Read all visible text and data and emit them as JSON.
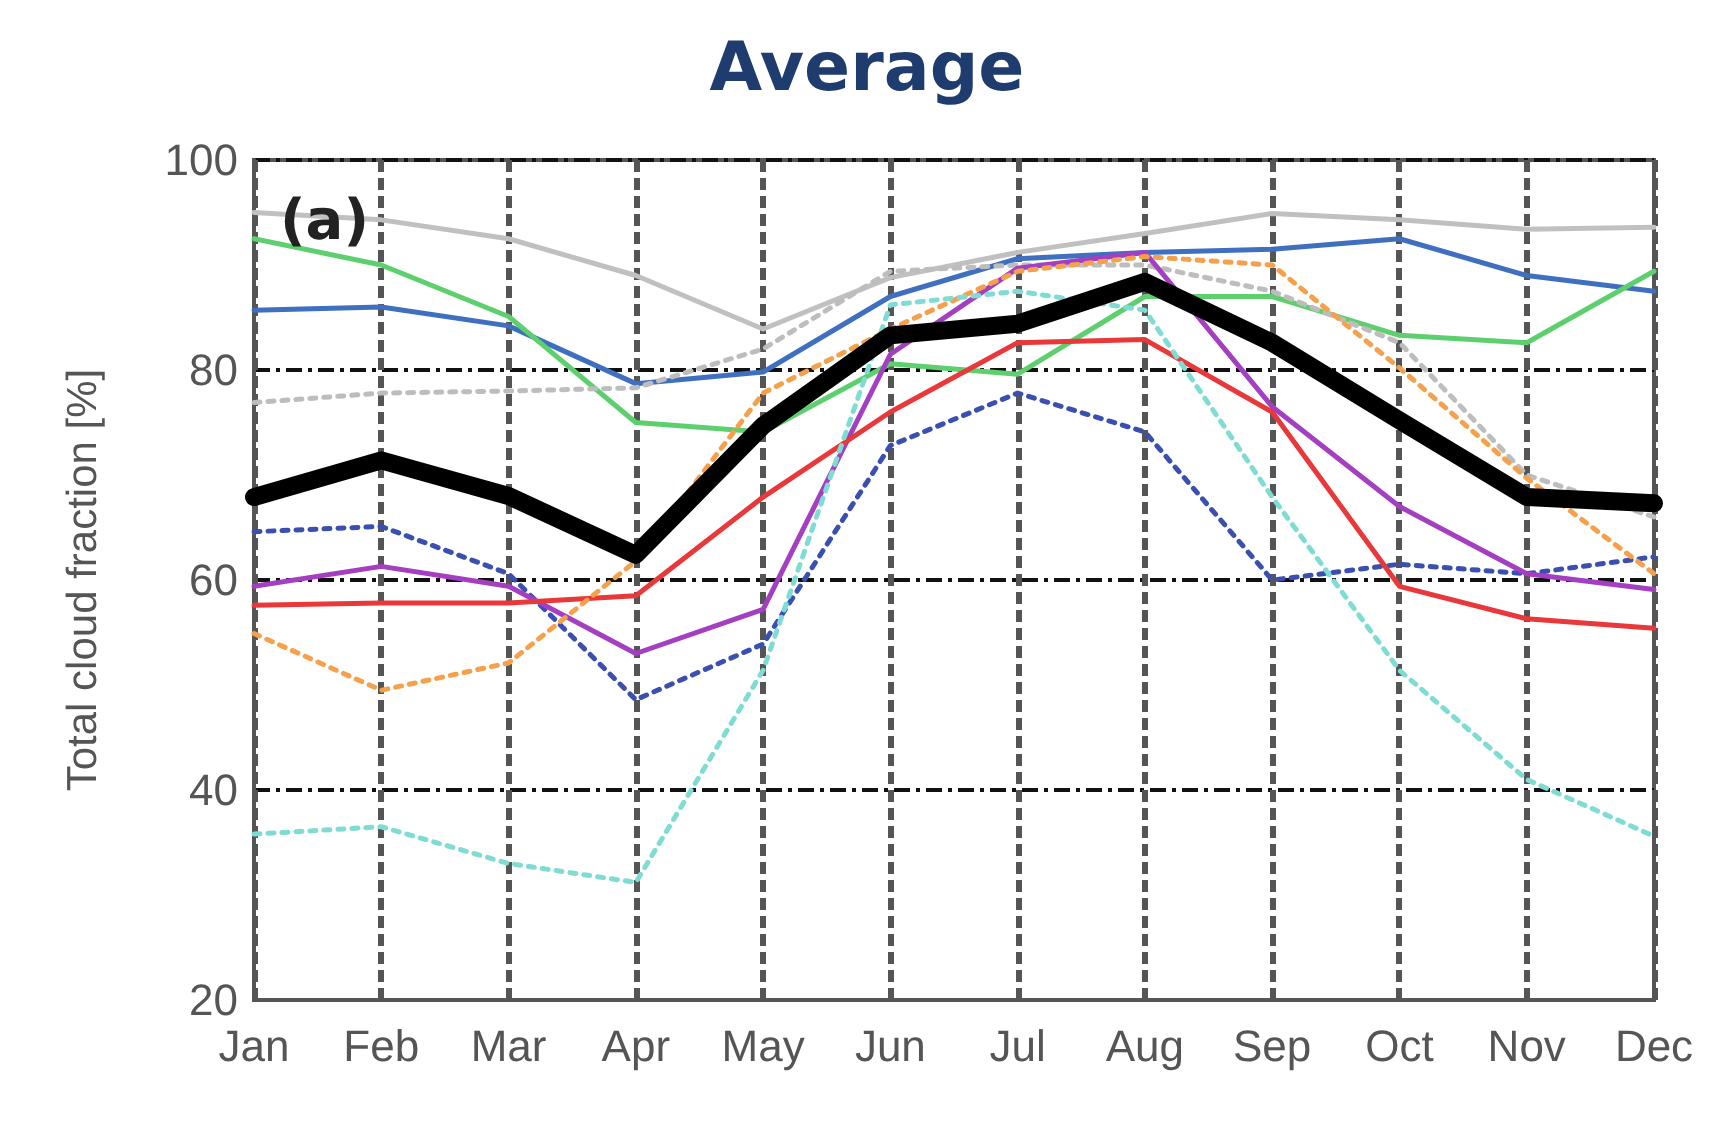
{
  "chart_data": {
    "type": "line",
    "title": "Average",
    "ylabel": "Total cloud fraction [%]",
    "annotations": [
      "(a)"
    ],
    "categories": [
      "Jan",
      "Feb",
      "Mar",
      "Apr",
      "May",
      "Jun",
      "Jul",
      "Aug",
      "Sep",
      "Oct",
      "Nov",
      "Dec"
    ],
    "ylim": [
      20,
      100
    ],
    "yticks": [
      20,
      40,
      60,
      80,
      100
    ],
    "grid": true,
    "marker": "none",
    "series": [
      {
        "color": "#c0c0c0",
        "line_style": "solid",
        "values": [
          95,
          94.3,
          92.5,
          89,
          83.9,
          88.8,
          91.2,
          93,
          94.9,
          94.3,
          93.4,
          93.6
        ]
      },
      {
        "color": "#3f6fbf",
        "line_style": "solid",
        "values": [
          85.7,
          86,
          84.2,
          78.7,
          79.8,
          87,
          90.6,
          91.2,
          91.5,
          92.5,
          89,
          87.5
        ]
      },
      {
        "color": "#5ecf6e",
        "line_style": "solid",
        "values": [
          92.5,
          90,
          85.1,
          75,
          74.1,
          80.6,
          79.6,
          87,
          87,
          83.3,
          82.6,
          89.4
        ]
      },
      {
        "color": "#bdbdbd",
        "line_style": "dotted",
        "values": [
          76.9,
          77.8,
          78,
          78.3,
          82,
          89.4,
          90,
          90,
          87.5,
          82.6,
          70,
          66
        ]
      },
      {
        "color": "#3a4fb0",
        "line_style": "dotted",
        "values": [
          64.6,
          65.1,
          60.6,
          48.6,
          53.9,
          72.8,
          77.8,
          74.1,
          60,
          61.5,
          60.6,
          62.2
        ]
      },
      {
        "color": "#a33fc0",
        "line_style": "solid",
        "values": [
          59.4,
          61.3,
          59.4,
          53,
          57.2,
          81.5,
          89.7,
          91.2,
          76.5,
          67,
          60.6,
          59.1
        ]
      },
      {
        "color": "#e8383a",
        "line_style": "solid",
        "values": [
          57.6,
          57.8,
          57.8,
          58.5,
          67.9,
          76,
          82.6,
          82.9,
          76,
          59.4,
          56.3,
          55.4
        ]
      },
      {
        "color": "#f5a04a",
        "line_style": "dotted",
        "values": [
          54.9,
          49.5,
          52.1,
          61.8,
          77.8,
          83.9,
          89.4,
          90.8,
          90,
          80.2,
          69.7,
          60.6
        ]
      },
      {
        "color": "#7fdcd2",
        "line_style": "dotted",
        "values": [
          35.8,
          36.5,
          33,
          31.2,
          51.4,
          86.2,
          87.5,
          85.7,
          67.9,
          51.4,
          41,
          35.6
        ]
      },
      {
        "color": "#000000",
        "line_style": "solid",
        "values": [
          67.9,
          71.4,
          68,
          62.4,
          74.7,
          83.3,
          84.4,
          88.4,
          82.6,
          75.2,
          67.9,
          67.3
        ]
      }
    ]
  }
}
